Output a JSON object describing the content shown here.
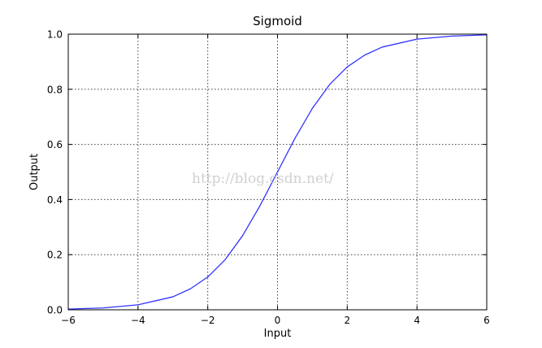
{
  "chart_data": {
    "type": "line",
    "title": "Sigmoid",
    "xlabel": "Input",
    "ylabel": "Output",
    "xlim": [
      -6,
      6
    ],
    "ylim": [
      0.0,
      1.0
    ],
    "xticks": [
      -6,
      -4,
      -2,
      0,
      2,
      4,
      6
    ],
    "xtick_labels": [
      "−6",
      "−4",
      "−2",
      "0",
      "2",
      "4",
      "6"
    ],
    "yticks": [
      0.0,
      0.2,
      0.4,
      0.6,
      0.8,
      1.0
    ],
    "ytick_labels": [
      "0.0",
      "0.2",
      "0.4",
      "0.6",
      "0.8",
      "1.0"
    ],
    "grid": true,
    "series": [
      {
        "color": "#3333ff",
        "x": [
          -6,
          -5,
          -4,
          -3,
          -2.5,
          -2,
          -1.5,
          -1,
          -0.5,
          0,
          0.5,
          1,
          1.5,
          2,
          2.5,
          3,
          4,
          5,
          6
        ],
        "y": [
          0.0025,
          0.0067,
          0.018,
          0.047,
          0.076,
          0.119,
          0.182,
          0.269,
          0.378,
          0.5,
          0.622,
          0.731,
          0.818,
          0.881,
          0.924,
          0.953,
          0.982,
          0.993,
          0.9975
        ]
      }
    ]
  },
  "watermark": "http://blog.csdn.net/"
}
